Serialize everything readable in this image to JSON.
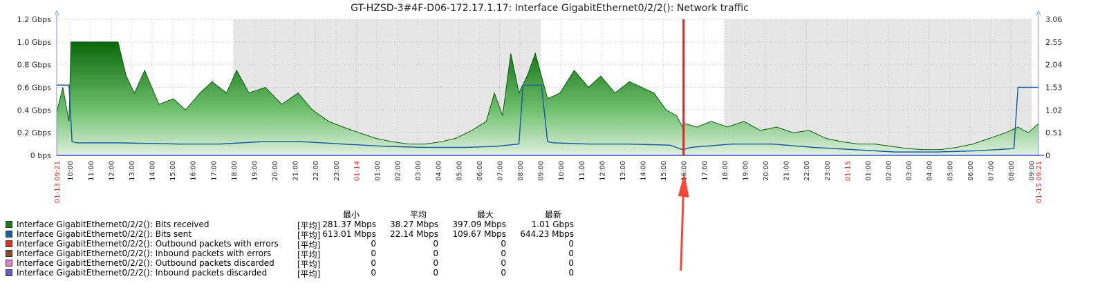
{
  "chart_data": {
    "type": "area",
    "title": "GT-HZSD-3#4F-D06-172.17.1.17: Interface GigabitEthernet0/2/2(): Network traffic",
    "y_left_ticks": [
      "1.2 Gbps",
      "1.0 Gbps",
      "0.8 Gbps",
      "0.6 Gbps",
      "0.4 Gbps",
      "0.2 Gbps",
      "0 bps"
    ],
    "y_right_ticks": [
      "3.06",
      "2.55",
      "2.04",
      "1.53",
      "1.02",
      "0.51",
      "0"
    ],
    "ylim": [
      0,
      1.2
    ],
    "y_unit": "Gbps",
    "x_start_label": "01-13 09:21",
    "x_end_label": "01-15 09:21",
    "x_ticks": [
      "10:00",
      "11:00",
      "12:00",
      "13:00",
      "14:00",
      "15:00",
      "16:00",
      "17:00",
      "18:00",
      "19:00",
      "20:00",
      "21:00",
      "22:00",
      "23:00",
      "01-14",
      "01:00",
      "02:00",
      "03:00",
      "04:00",
      "05:00",
      "06:00",
      "07:00",
      "08:00",
      "09:00",
      "10:00",
      "11:00",
      "12:00",
      "13:00",
      "14:00",
      "15:00",
      "16:00",
      "17:00",
      "18:00",
      "19:00",
      "20:00",
      "21:00",
      "22:00",
      "23:00",
      "01-15",
      "01:00",
      "02:00",
      "03:00",
      "04:00",
      "05:00",
      "06:00",
      "07:00",
      "08:00",
      "09:00"
    ],
    "x_tick_red": [
      14,
      38
    ],
    "x_hours_first_tick": 0.65,
    "x_hours_total": 48,
    "shaded_hours": [
      [
        8.65,
        23.65
      ],
      [
        32.65,
        47.65
      ]
    ],
    "marker_hour": 30.65,
    "series": [
      {
        "name": "Interface GigabitEthernet0/2/2(): Bits received",
        "color": "#1a7a1a",
        "x_hours": [
          0,
          0.3,
          0.6,
          0.7,
          1.0,
          2.0,
          3.0,
          3.4,
          3.8,
          4.3,
          5.0,
          5.7,
          6.3,
          7.0,
          7.6,
          8.3,
          8.8,
          9.4,
          10.2,
          11.0,
          11.8,
          12.5,
          13.3,
          14.0,
          14.8,
          15.6,
          16.4,
          17.2,
          18.0,
          18.8,
          19.5,
          20.3,
          21.0,
          21.4,
          21.8,
          22.2,
          22.6,
          23.0,
          23.4,
          24.0,
          24.6,
          25.3,
          26.0,
          26.6,
          27.3,
          28.0,
          28.6,
          29.2,
          29.8,
          30.3,
          30.6,
          30.7,
          31.3,
          32.0,
          32.8,
          33.6,
          34.4,
          35.2,
          36.0,
          36.8,
          37.6,
          38.4,
          39.2,
          40.0,
          40.8,
          41.6,
          42.4,
          43.2,
          44.0,
          44.8,
          45.6,
          46.4,
          47.0,
          47.5,
          48.0
        ],
        "values": [
          0.38,
          0.6,
          0.3,
          1.0,
          1.0,
          1.0,
          1.0,
          0.7,
          0.55,
          0.75,
          0.45,
          0.5,
          0.4,
          0.55,
          0.65,
          0.55,
          0.75,
          0.55,
          0.6,
          0.45,
          0.55,
          0.4,
          0.3,
          0.25,
          0.2,
          0.15,
          0.12,
          0.1,
          0.1,
          0.12,
          0.15,
          0.22,
          0.3,
          0.55,
          0.35,
          0.9,
          0.55,
          0.7,
          0.9,
          0.5,
          0.55,
          0.75,
          0.6,
          0.7,
          0.55,
          0.65,
          0.6,
          0.55,
          0.4,
          0.35,
          0.25,
          0.28,
          0.25,
          0.3,
          0.25,
          0.3,
          0.22,
          0.25,
          0.2,
          0.22,
          0.15,
          0.12,
          0.1,
          0.1,
          0.08,
          0.06,
          0.05,
          0.05,
          0.07,
          0.1,
          0.15,
          0.2,
          0.25,
          0.2,
          0.28
        ]
      },
      {
        "name": "Interface GigabitEthernet0/2/2(): Bits sent",
        "color": "#1a5f9e",
        "x_hours": [
          0,
          0.6,
          0.75,
          1.0,
          3.0,
          6.0,
          8.0,
          10.0,
          12.0,
          14.0,
          16.0,
          18.0,
          20.0,
          21.5,
          22.6,
          22.8,
          23.7,
          24.0,
          24.3,
          26.0,
          28.0,
          30.0,
          30.6,
          31.0,
          33.0,
          35.0,
          37.0,
          39.0,
          41.0,
          43.0,
          45.0,
          46.8,
          47.0,
          48.0
        ],
        "values": [
          0.62,
          0.62,
          0.12,
          0.11,
          0.11,
          0.1,
          0.1,
          0.12,
          0.12,
          0.1,
          0.08,
          0.07,
          0.07,
          0.08,
          0.1,
          0.62,
          0.62,
          0.12,
          0.11,
          0.1,
          0.1,
          0.09,
          0.05,
          0.07,
          0.1,
          0.1,
          0.07,
          0.05,
          0.03,
          0.03,
          0.04,
          0.06,
          0.6,
          0.6
        ]
      }
    ]
  },
  "legend": {
    "headers": [
      "最小",
      "平均",
      "最大",
      "最新"
    ],
    "items": [
      {
        "name": "Interface GigabitEthernet0/2/2(): Bits received",
        "color": "#1a7a1a",
        "unit": "[平均]",
        "values": [
          "281.37 Mbps",
          "38.27 Mbps",
          "397.09 Mbps",
          "1.01 Gbps"
        ]
      },
      {
        "name": "Interface GigabitEthernet0/2/2(): Bits sent",
        "color": "#1a5f9e",
        "unit": "[平均]",
        "values": [
          "613.01 Mbps",
          "22.14 Mbps",
          "109.67 Mbps",
          "644.23 Mbps"
        ]
      },
      {
        "name": "Interface GigabitEthernet0/2/2(): Outbound packets with errors",
        "color": "#e8301c",
        "unit": "[平均]",
        "values": [
          "0",
          "0",
          "0",
          "0"
        ]
      },
      {
        "name": "Interface GigabitEthernet0/2/2(): Inbound packets with errors",
        "color": "#8b4a2b",
        "unit": "[平均]",
        "values": [
          "0",
          "0",
          "0",
          "0"
        ]
      },
      {
        "name": "Interface GigabitEthernet0/2/2(): Outbound packets discarded",
        "color": "#e87ac8",
        "unit": "[平均]",
        "values": [
          "0",
          "0",
          "0",
          "0"
        ]
      },
      {
        "name": "Interface GigabitEthernet0/2/2(): Inbound packets discarded",
        "color": "#6a5acd",
        "unit": "[平均]",
        "values": [
          "0",
          "0",
          "0",
          "0"
        ]
      }
    ]
  }
}
